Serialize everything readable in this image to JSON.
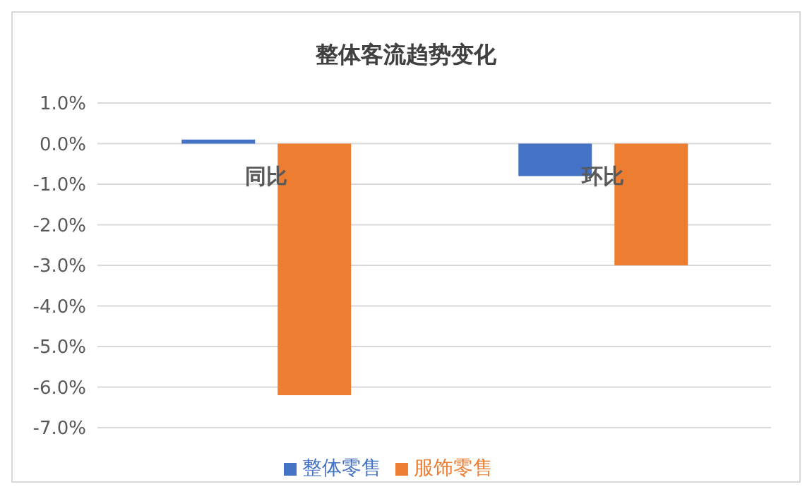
{
  "chart_data": {
    "type": "bar",
    "title": "整体客流趋势变化",
    "categories": [
      "同比",
      "环比"
    ],
    "series": [
      {
        "name": "整体零售",
        "color": "#4472c4",
        "values": [
          0.1,
          -0.8
        ]
      },
      {
        "name": "服饰零售",
        "color": "#ed7d31",
        "values": [
          -6.2,
          -3.0
        ]
      }
    ],
    "ylim": [
      -7,
      1
    ],
    "yticks": [
      {
        "value": 1,
        "label": "1.0%"
      },
      {
        "value": 0,
        "label": "0.0%"
      },
      {
        "value": -1,
        "label": "-1.0%"
      },
      {
        "value": -2,
        "label": "-2.0%"
      },
      {
        "value": -3,
        "label": "-3.0%"
      },
      {
        "value": -4,
        "label": "-4.0%"
      },
      {
        "value": -5,
        "label": "-5.0%"
      },
      {
        "value": -6,
        "label": "-6.0%"
      },
      {
        "value": -7,
        "label": "-7.0%"
      }
    ],
    "grid": "y",
    "legend": "bottom"
  }
}
